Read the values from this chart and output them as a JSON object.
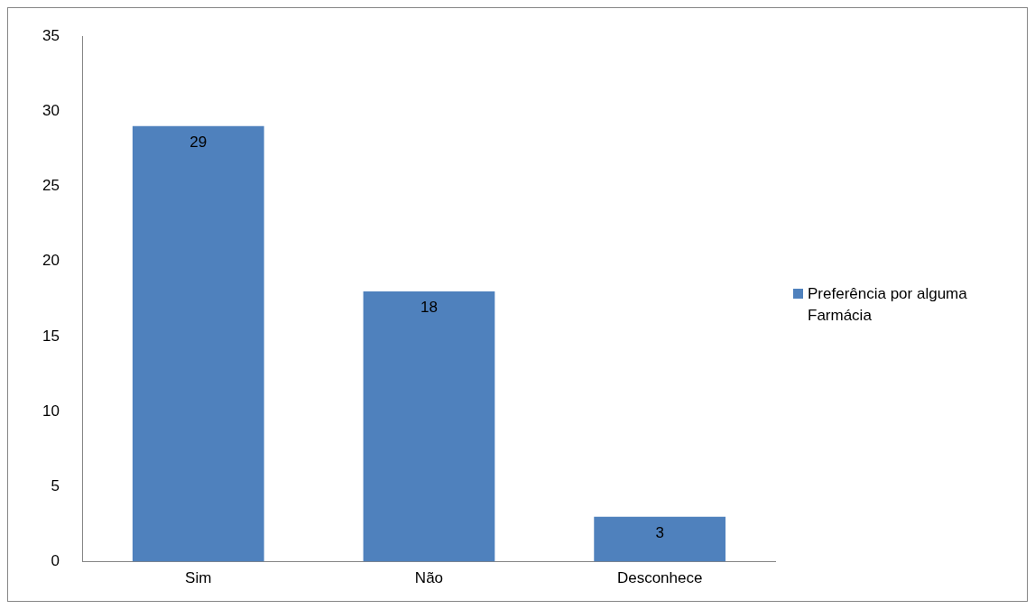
{
  "chart_data": {
    "type": "bar",
    "categories": [
      "Sim",
      "Não",
      "Desconhece"
    ],
    "series": [
      {
        "name": "Preferência por alguma Farmácia",
        "color": "#4f81bd",
        "values": [
          29,
          18,
          3
        ]
      }
    ],
    "ylim": [
      0,
      35
    ],
    "yticks": [
      0,
      5,
      10,
      15,
      20,
      25,
      30,
      35
    ],
    "grid": false,
    "legend": "right",
    "data_labels": true
  }
}
